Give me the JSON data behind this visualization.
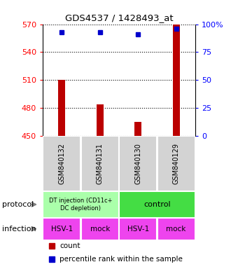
{
  "title": "GDS4537 / 1428493_at",
  "samples": [
    "GSM840132",
    "GSM840131",
    "GSM840130",
    "GSM840129"
  ],
  "counts": [
    510,
    484,
    465,
    570
  ],
  "percentiles": [
    93,
    93,
    91,
    96
  ],
  "ylim_left": [
    450,
    570
  ],
  "yticks_left": [
    450,
    480,
    510,
    540,
    570
  ],
  "ylim_right": [
    0,
    100
  ],
  "yticks_right": [
    0,
    25,
    50,
    75,
    100
  ],
  "bar_color": "#bb0000",
  "percentile_color": "#0000cc",
  "protocol_groups": [
    {
      "label": "DT injection (CD11c+\nDC depletion)",
      "start": 0,
      "end": 2,
      "color": "#aaffaa"
    },
    {
      "label": "control",
      "start": 2,
      "end": 4,
      "color": "#44dd44"
    }
  ],
  "infection": [
    "HSV-1",
    "mock",
    "HSV-1",
    "mock"
  ],
  "infection_color": "#ee44ee",
  "row_label_protocol": "protocol",
  "row_label_infection": "infection",
  "sample_box_color": "#d3d3d3",
  "legend_count_color": "#bb0000",
  "legend_percentile_color": "#0000cc"
}
